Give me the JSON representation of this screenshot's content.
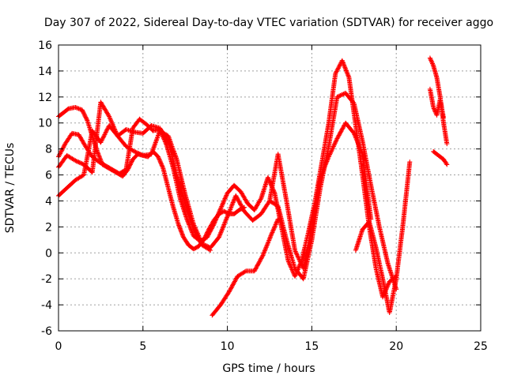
{
  "chart_data": {
    "type": "scatter",
    "title": "Day 307 of 2022, Sidereal Day-to-day VTEC variation (SDTVAR) for receiver aggo",
    "xlabel": "GPS time / hours",
    "ylabel": "SDTVAR / TECUs",
    "xlim": [
      0,
      25
    ],
    "ylim": [
      -6,
      16
    ],
    "xticks": [
      "0",
      "5",
      "10",
      "15",
      "20",
      "25"
    ],
    "yticks": [
      "-6",
      "-4",
      "-2",
      "0",
      "2",
      "4",
      "6",
      "8",
      "10",
      "12",
      "14",
      "16"
    ],
    "grid": true,
    "marker": "+",
    "color": "#ff0000",
    "series": [
      {
        "x": [
          0.0,
          0.3,
          0.6,
          1.0,
          1.4,
          1.7,
          2.0,
          2.3,
          2.6,
          3.0,
          3.4,
          3.8,
          4.1,
          4.4,
          4.7,
          5.0,
          5.3,
          5.6,
          5.9,
          6.2,
          6.5,
          6.8,
          7.1,
          7.4,
          7.7,
          8.0,
          8.3,
          8.6,
          8.9,
          9.2,
          9.5,
          9.8,
          10.1,
          10.4,
          10.7,
          11.0
        ],
        "y": [
          10.5,
          10.8,
          11.1,
          11.2,
          11.0,
          10.2,
          9.0,
          7.8,
          6.8,
          6.5,
          6.2,
          5.9,
          6.4,
          7.2,
          7.6,
          7.5,
          7.4,
          7.8,
          7.4,
          6.5,
          5.0,
          3.5,
          2.2,
          1.2,
          0.6,
          0.3,
          0.5,
          1.0,
          1.8,
          2.5,
          3.0,
          3.2,
          3.0,
          3.0,
          3.3,
          3.5
        ]
      },
      {
        "x": [
          0.0,
          0.4,
          0.8,
          1.2,
          1.6,
          2.0,
          2.4,
          2.8,
          3.2,
          3.6,
          4.0,
          4.4,
          4.8,
          5.2,
          5.6,
          6.0,
          6.4,
          6.8,
          7.2,
          7.6,
          8.0,
          8.4,
          8.8,
          9.2,
          9.6,
          10.0,
          10.4,
          10.8,
          11.2,
          11.6,
          12.0,
          12.4,
          12.8,
          13.2,
          13.6,
          14.0,
          14.4,
          14.8,
          15.2,
          15.6,
          16.0,
          16.4,
          16.8,
          17.2,
          17.6,
          18.0,
          18.4,
          18.8,
          19.2,
          19.6,
          20.0
        ],
        "y": [
          7.4,
          8.4,
          9.2,
          9.1,
          8.2,
          7.4,
          7.0,
          6.7,
          6.4,
          6.1,
          6.4,
          9.6,
          10.3,
          9.9,
          9.4,
          9.5,
          8.3,
          6.5,
          4.2,
          2.6,
          1.3,
          0.9,
          1.2,
          2.2,
          3.4,
          4.6,
          5.2,
          4.7,
          3.8,
          3.3,
          4.2,
          5.8,
          4.6,
          2.0,
          -0.6,
          -1.8,
          -0.6,
          1.6,
          4.0,
          7.0,
          10.0,
          13.8,
          14.8,
          13.5,
          9.8,
          6.0,
          2.0,
          -1.2,
          -3.4,
          -2.2,
          -1.8
        ]
      },
      {
        "x": [
          0.0,
          0.5,
          1.0,
          1.5,
          2.0,
          2.5,
          3.0,
          3.5,
          4.0,
          4.5,
          5.0,
          5.5,
          6.0,
          6.5,
          7.0,
          7.5,
          8.0,
          8.5,
          9.0,
          9.5,
          10.0,
          10.5,
          11.0,
          11.5,
          12.0,
          12.5,
          13.0,
          13.5,
          14.0,
          14.5,
          15.0,
          15.5,
          16.0,
          16.5,
          17.0,
          17.5,
          18.0,
          18.5,
          19.0,
          19.5,
          20.0
        ],
        "y": [
          6.6,
          7.5,
          7.1,
          6.8,
          6.2,
          11.6,
          10.5,
          9.0,
          8.2,
          7.8,
          7.5,
          7.6,
          9.4,
          9.0,
          7.2,
          4.5,
          2.2,
          0.7,
          0.4,
          1.2,
          2.8,
          4.4,
          3.2,
          2.5,
          3.0,
          4.0,
          3.6,
          1.0,
          -1.2,
          -2.0,
          1.0,
          5.0,
          8.2,
          12.0,
          12.3,
          11.5,
          8.6,
          5.2,
          2.0,
          -0.8,
          -2.8
        ]
      },
      {
        "x": [
          0.0,
          0.5,
          1.0,
          1.5,
          2.0,
          2.5,
          3.0,
          3.5,
          4.0,
          4.5,
          5.0,
          5.5,
          6.0,
          6.5,
          7.0,
          7.5,
          8.0,
          8.5,
          9.0
        ],
        "y": [
          4.4,
          5.0,
          5.6,
          6.0,
          9.4,
          8.5,
          9.8,
          9.0,
          9.5,
          9.3,
          9.2,
          9.8,
          9.6,
          8.6,
          6.0,
          3.8,
          1.8,
          0.6,
          0.2
        ]
      },
      {
        "x": [
          9.1,
          9.6,
          10.1,
          10.6,
          11.1,
          11.6,
          12.1,
          12.6,
          13.0
        ],
        "y": [
          -4.8,
          -4.0,
          -3.0,
          -1.8,
          -1.4,
          -1.4,
          -0.2,
          1.4,
          2.6
        ]
      },
      {
        "x": [
          12.5,
          13.0,
          13.5,
          14.0,
          14.5,
          15.0,
          15.5,
          16.0,
          16.5,
          17.0,
          17.5,
          18.0,
          18.5
        ],
        "y": [
          4.0,
          7.6,
          4.0,
          0.2,
          -1.2,
          2.0,
          5.8,
          7.4,
          8.8,
          10.0,
          9.2,
          7.6,
          2.6
        ]
      },
      {
        "x": [
          17.6,
          18.0,
          18.4,
          18.8,
          19.2,
          19.6,
          20.0,
          20.4,
          20.8
        ],
        "y": [
          0.2,
          1.8,
          2.4,
          0.4,
          -2.0,
          -4.6,
          -2.0,
          2.2,
          7.0
        ]
      },
      {
        "x": [
          22.0,
          22.2,
          22.4,
          22.6,
          22.8,
          23.0
        ],
        "y": [
          15.0,
          14.4,
          13.5,
          12.0,
          10.0,
          8.4
        ]
      },
      {
        "x": [
          22.0,
          22.2,
          22.4,
          22.6,
          22.8
        ],
        "y": [
          12.6,
          11.2,
          10.6,
          11.8,
          10.4
        ]
      },
      {
        "x": [
          22.2,
          22.4,
          22.6,
          22.8,
          23.0
        ],
        "y": [
          7.8,
          7.6,
          7.4,
          7.2,
          6.8
        ]
      }
    ]
  }
}
